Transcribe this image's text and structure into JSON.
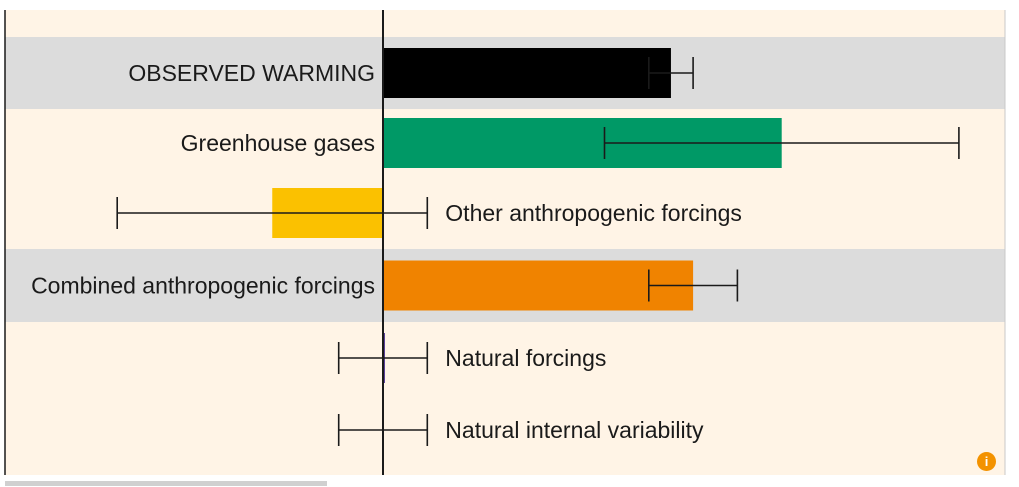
{
  "chart_data": {
    "type": "bar",
    "orientation": "horizontal",
    "categories": [
      "OBSERVED WARMING",
      "Greenhouse gases",
      "Other anthropogenic forcings",
      "Combined anthropogenic forcings",
      "Natural forcings",
      "Natural internal variability"
    ],
    "series": [
      {
        "values": [
          0.65,
          0.9,
          -0.25,
          0.7,
          0.0,
          0.0
        ],
        "error_low": [
          0.6,
          0.5,
          -0.6,
          0.6,
          -0.1,
          -0.1
        ],
        "error_high": [
          0.7,
          1.3,
          0.1,
          0.8,
          0.1,
          0.1
        ],
        "colors": [
          "#000000",
          "#009966",
          "#fbc100",
          "#f08300",
          "#5b3f9a",
          "#000000"
        ]
      }
    ],
    "xlim": [
      -0.85,
      1.4
    ],
    "grid": false,
    "row_bands": [
      "gray",
      "cream",
      "cream",
      "gray",
      "cream",
      "cream"
    ],
    "label_side": [
      "left",
      "left",
      "right",
      "left",
      "right",
      "right"
    ]
  },
  "colors": {
    "background": "#fff4e6",
    "band": "#dcdcdc",
    "axis": "#1a1a1a",
    "badge": "#f39200"
  },
  "badge": {
    "icon": "info-icon",
    "glyph": "i"
  }
}
